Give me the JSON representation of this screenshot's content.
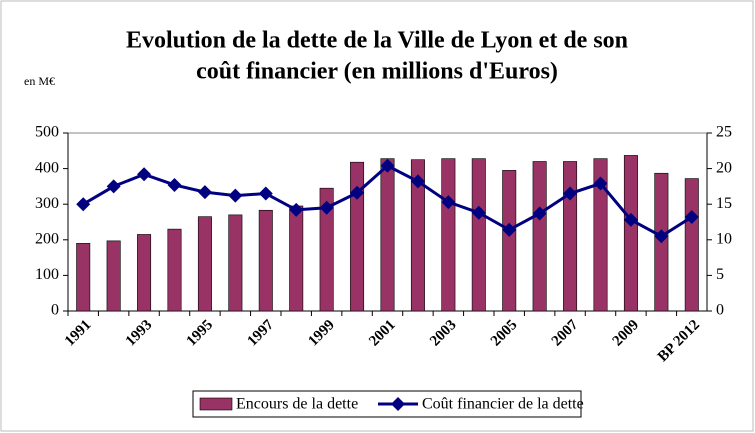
{
  "chart_data": {
    "type": "bar-line",
    "title": [
      "Evolution de la dette de la Ville de Lyon et de son",
      "coût financier (en millions d'Euros)"
    ],
    "y_axis_label": "en M€",
    "categories": [
      "1991",
      null,
      "1993",
      null,
      "1995",
      null,
      "1997",
      null,
      "1999",
      null,
      "2001",
      null,
      "2003",
      null,
      "2005",
      null,
      "2007",
      null,
      "2009",
      null,
      "BP 2012"
    ],
    "series": [
      {
        "name": "Encours de la dette",
        "type": "bar",
        "color": "#993366",
        "values": [
          190,
          197,
          215,
          230,
          265,
          270,
          283,
          295,
          345,
          418,
          428,
          425,
          428,
          428,
          395,
          420,
          420,
          428,
          437,
          387,
          372
        ]
      },
      {
        "name": "Coût financier de la dette",
        "type": "line",
        "axis": "y2",
        "color": "#000080",
        "values": [
          15,
          17.5,
          19.2,
          17.7,
          16.7,
          16.2,
          16.5,
          14.2,
          14.5,
          16.6,
          20.4,
          18.2,
          15.3,
          13.8,
          11.4,
          13.7,
          16.5,
          17.9,
          12.8,
          10.5,
          13.2
        ]
      }
    ],
    "ylim": [
      0,
      500
    ],
    "yticks": [
      0,
      100,
      200,
      300,
      400,
      500
    ],
    "y2lim": [
      0,
      25
    ],
    "y2ticks": [
      0,
      5,
      10,
      15,
      20,
      25
    ],
    "legend": "bottom"
  }
}
